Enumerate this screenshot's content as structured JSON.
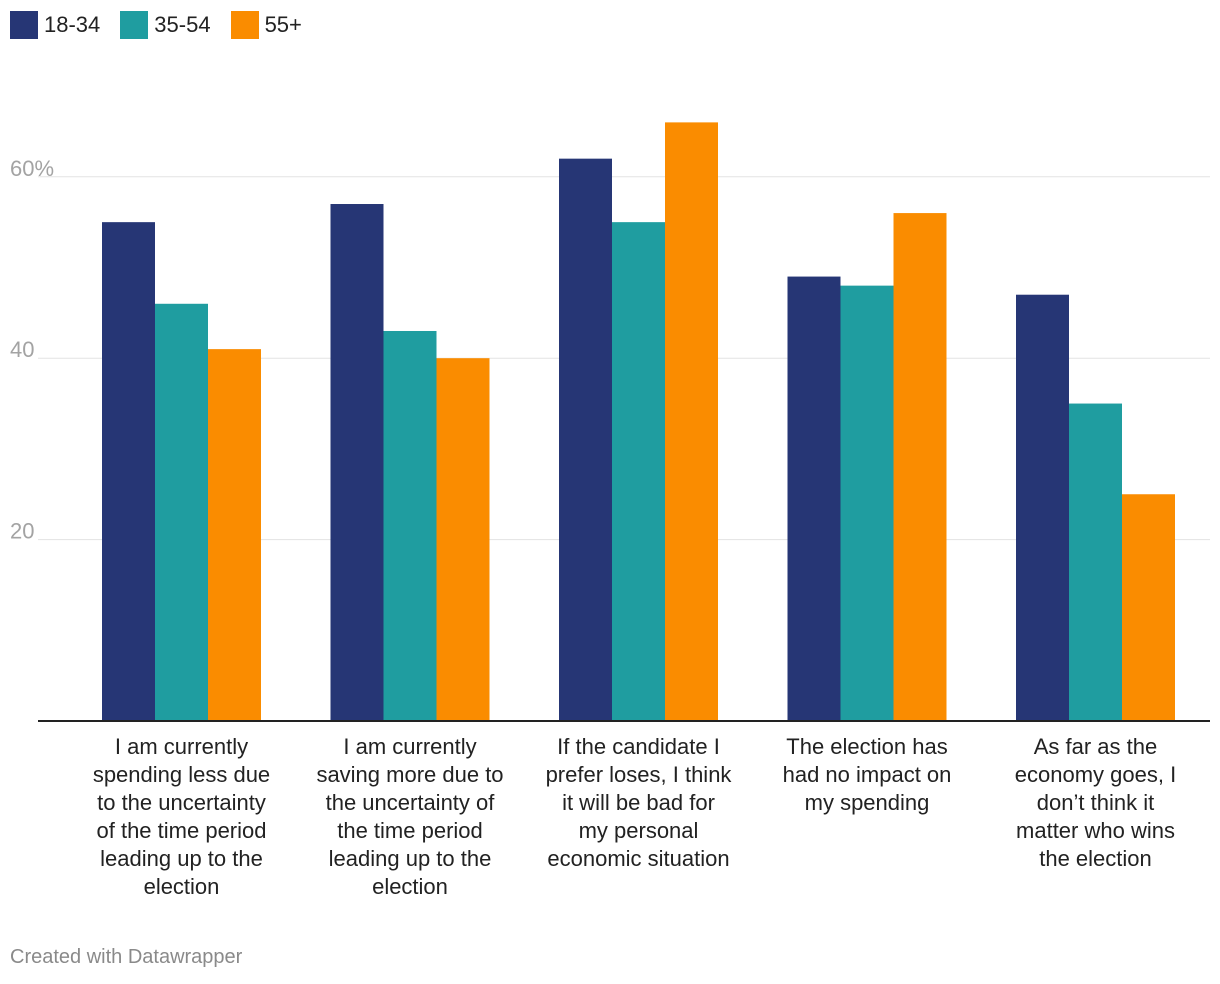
{
  "chart_data": {
    "type": "bar",
    "title": "",
    "xlabel": "",
    "ylabel": "",
    "ylim": [
      0,
      66
    ],
    "yticks": [
      20,
      40,
      60
    ],
    "ytick_labels": [
      "20",
      "40",
      "60%"
    ],
    "grid": true,
    "legend_position": "top-left",
    "categories": [
      "I am currently spending less due to the uncertainty of the time period leading up to the election",
      "I am currently saving more due to the uncertainty of the time period leading up to the election",
      "If the candidate I prefer loses, I think it will be bad for my personal economic situation",
      "The election has had no impact on my spending",
      "As far as the economy goes, I don’t think it matter who wins the election"
    ],
    "series": [
      {
        "name": "18-34",
        "color": "#263675",
        "values": [
          55,
          57,
          62,
          49,
          47
        ]
      },
      {
        "name": "35-54",
        "color": "#1f9da0",
        "values": [
          46,
          43,
          55,
          48,
          35
        ]
      },
      {
        "name": "55+",
        "color": "#fa8c00",
        "values": [
          41,
          40,
          66,
          56,
          25
        ]
      }
    ]
  },
  "footer": {
    "credit": "Created with Datawrapper"
  }
}
